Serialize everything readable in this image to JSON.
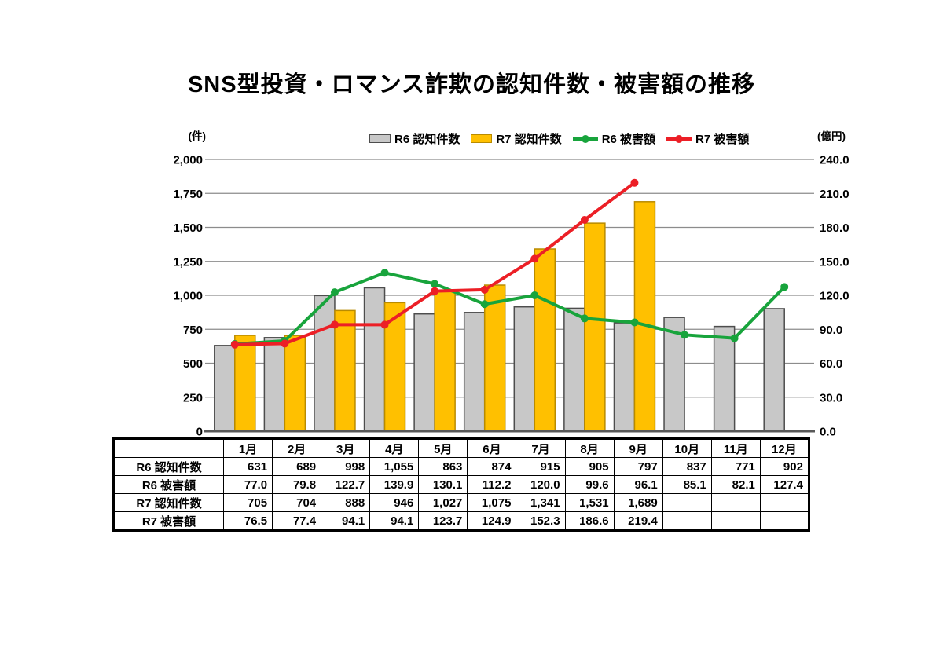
{
  "title": "SNS型投資・ロマンス詐欺の認知件数・被害額の推移",
  "chart_data": {
    "type": "combo-bar-line",
    "categories": [
      "1月",
      "2月",
      "3月",
      "4月",
      "5月",
      "6月",
      "7月",
      "8月",
      "9月",
      "10月",
      "11月",
      "12月"
    ],
    "y_left": {
      "unit": "(件)",
      "min": 0,
      "max": 2000,
      "step": 250,
      "ticks": [
        "2,000",
        "1,750",
        "1,500",
        "1,250",
        "1,000",
        "750",
        "500",
        "250",
        "0"
      ]
    },
    "y_right": {
      "unit": "(億円)",
      "min": 0,
      "max": 240,
      "step": 30,
      "ticks": [
        "240.0",
        "210.0",
        "180.0",
        "150.0",
        "120.0",
        "90.0",
        "60.0",
        "30.0",
        "0.0"
      ]
    },
    "bar_series": [
      {
        "name": "R6 認知件数",
        "axis": "left",
        "color": "#C8C8C8",
        "border_color": "#4D4D4D",
        "values": [
          631,
          689,
          998,
          1055,
          863,
          874,
          915,
          905,
          797,
          837,
          771,
          902
        ]
      },
      {
        "name": "R7 認知件数",
        "axis": "left",
        "color": "#FFC000",
        "border_color": "#B98B00",
        "values": [
          705,
          704,
          888,
          946,
          1027,
          1075,
          1341,
          1531,
          1689,
          null,
          null,
          null
        ]
      }
    ],
    "line_series": [
      {
        "name": "R6 被害額",
        "axis": "right",
        "color": "#18A43C",
        "values": [
          77.0,
          79.8,
          122.7,
          139.9,
          130.1,
          112.2,
          120.0,
          99.6,
          96.1,
          85.1,
          82.1,
          127.4
        ]
      },
      {
        "name": "R7 被害額",
        "axis": "right",
        "color": "#EC1F26",
        "values": [
          76.5,
          77.4,
          94.1,
          94.1,
          123.7,
          124.9,
          152.3,
          186.6,
          219.4,
          null,
          null,
          null
        ]
      }
    ],
    "grid": true,
    "legend_position": "top"
  },
  "table": {
    "col_headers": [
      "",
      "1月",
      "2月",
      "3月",
      "4月",
      "5月",
      "6月",
      "7月",
      "8月",
      "9月",
      "10月",
      "11月",
      "12月"
    ],
    "rows": [
      {
        "label": "R6 認知件数",
        "values": [
          "631",
          "689",
          "998",
          "1,055",
          "863",
          "874",
          "915",
          "905",
          "797",
          "837",
          "771",
          "902"
        ]
      },
      {
        "label": "R6 被害額",
        "values": [
          "77.0",
          "79.8",
          "122.7",
          "139.9",
          "130.1",
          "112.2",
          "120.0",
          "99.6",
          "96.1",
          "85.1",
          "82.1",
          "127.4"
        ]
      },
      {
        "label": "R7 認知件数",
        "values": [
          "705",
          "704",
          "888",
          "946",
          "1,027",
          "1,075",
          "1,341",
          "1,531",
          "1,689",
          "",
          "",
          ""
        ]
      },
      {
        "label": "R7 被害額",
        "values": [
          "76.5",
          "77.4",
          "94.1",
          "94.1",
          "123.7",
          "124.9",
          "152.3",
          "186.6",
          "219.4",
          "",
          "",
          ""
        ]
      }
    ]
  }
}
